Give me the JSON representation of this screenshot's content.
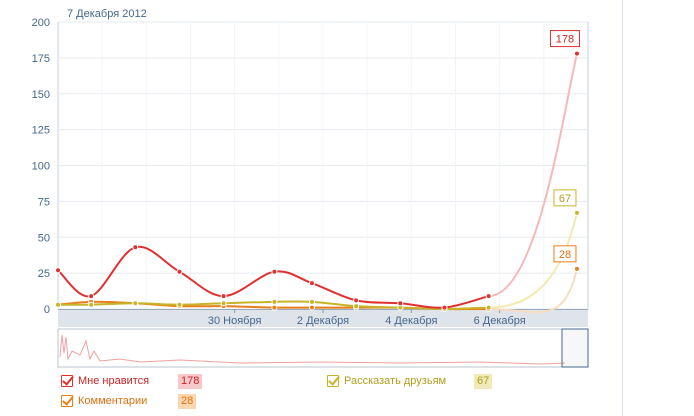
{
  "header": {
    "date_label": "7 Декабря 2012"
  },
  "chart_data": {
    "type": "line",
    "ylim": [
      0,
      200
    ],
    "yticks": [
      "0",
      "25",
      "50",
      "75",
      "100",
      "125",
      "150",
      "175",
      "200"
    ],
    "xticks": [
      {
        "label": "30 Ноября",
        "day": 4
      },
      {
        "label": "2 Декабря",
        "day": 6
      },
      {
        "label": "4 Декабря",
        "day": 8
      },
      {
        "label": "6 Декабря",
        "day": 10
      }
    ],
    "xlim": [
      0,
      12
    ],
    "grid": true,
    "series": [
      {
        "name": "Мне нравится",
        "color": "#e03030",
        "tailColor": "#f7b8b8",
        "total": "178",
        "labelColor": "#cc2222",
        "badgeBg": "#f8c8c8",
        "points": [
          [
            0,
            27
          ],
          [
            0.75,
            9
          ],
          [
            1.75,
            43
          ],
          [
            2.75,
            26
          ],
          [
            3.75,
            9
          ],
          [
            4.9,
            26
          ],
          [
            5.75,
            18
          ],
          [
            6.75,
            6
          ],
          [
            7.75,
            4
          ],
          [
            8.75,
            1
          ],
          [
            9.75,
            9
          ],
          [
            11.75,
            178
          ]
        ]
      },
      {
        "name": "Комментарии",
        "color": "#e87f1c",
        "tailColor": "#f8dcc0",
        "total": "28",
        "labelColor": "#e07010",
        "badgeBg": "#fbd7b0",
        "points": [
          [
            0,
            3
          ],
          [
            0.75,
            5
          ],
          [
            1.75,
            4
          ],
          [
            2.75,
            2
          ],
          [
            3.75,
            2
          ],
          [
            4.9,
            1
          ],
          [
            5.75,
            1
          ],
          [
            6.75,
            1
          ],
          [
            7.75,
            1
          ],
          [
            8.75,
            0
          ],
          [
            9.75,
            0
          ],
          [
            11.75,
            28
          ]
        ]
      },
      {
        "name": "Рассказать друзьям",
        "color": "#c8b428",
        "tailColor": "#f2eab0",
        "total": "67",
        "labelColor": "#b0a020",
        "badgeBg": "#f0eab8",
        "points": [
          [
            0,
            3
          ],
          [
            0.75,
            3
          ],
          [
            1.75,
            4
          ],
          [
            2.75,
            3
          ],
          [
            3.75,
            4
          ],
          [
            4.9,
            5
          ],
          [
            5.75,
            5
          ],
          [
            6.75,
            2
          ],
          [
            7.75,
            1
          ],
          [
            8.75,
            0
          ],
          [
            9.75,
            1
          ],
          [
            11.75,
            67
          ]
        ]
      }
    ]
  }
}
